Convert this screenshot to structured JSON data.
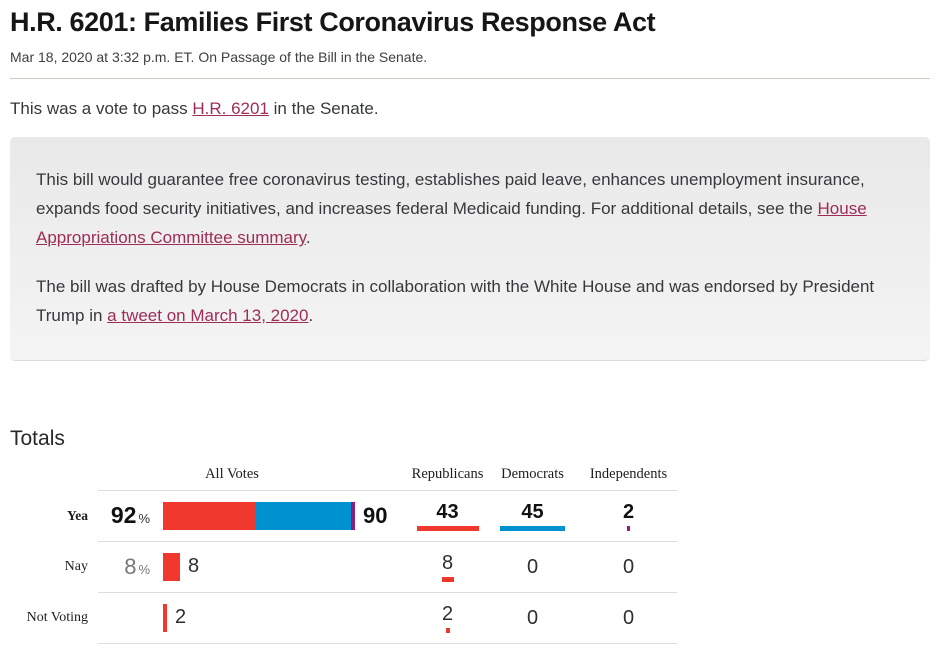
{
  "page": {
    "title": "H.R. 6201: Families First Coronavirus Response Act",
    "subtitle": "Mar 18, 2020 at 3:32 p.m. ET. On Passage of the Bill in the Senate.",
    "intro": {
      "pre": "This was a vote to pass ",
      "link": "H.R. 6201",
      "post": " in the Senate."
    }
  },
  "summary_box": {
    "p1": {
      "pre": "This bill would guarantee free coronavirus testing, establishes paid leave, enhances unemployment insurance, expands food security initiatives, and increases federal Medicaid funding. For additional details, see the ",
      "link": "House Appropriations Committee summary",
      "post": "."
    },
    "p2": {
      "pre": "The bill was drafted by House Democrats in collaboration with the White House and was endorsed by President Trump in ",
      "link": "a tweet on March 13, 2020",
      "post": "."
    }
  },
  "totals": {
    "heading": "Totals",
    "columns": [
      "All Votes",
      "Republicans",
      "Democrats",
      "Independents"
    ],
    "rows": [
      {
        "label": "Yea",
        "percent": "92",
        "percent_symbol": "%",
        "count": "90",
        "republicans": "43",
        "democrats": "45",
        "independents": "2",
        "r": 43,
        "d": 45,
        "i": 2
      },
      {
        "label": "Nay",
        "percent": "8",
        "percent_symbol": "%",
        "count": "8",
        "republicans": "8",
        "democrats": "0",
        "independents": "0",
        "r": 8,
        "d": 0,
        "i": 0
      },
      {
        "label": "Not Voting",
        "percent": "",
        "percent_symbol": "",
        "count": "2",
        "republicans": "2",
        "democrats": "0",
        "independents": "0",
        "r": 2,
        "d": 0,
        "i": 0
      }
    ]
  },
  "chart_data": {
    "type": "bar",
    "title": "Senate vote totals on H.R. 6201",
    "categories": [
      "Yea",
      "Nay",
      "Not Voting"
    ],
    "series": [
      {
        "name": "Republicans",
        "values": [
          43,
          8,
          2
        ]
      },
      {
        "name": "Democrats",
        "values": [
          45,
          0,
          0
        ]
      },
      {
        "name": "Independents",
        "values": [
          2,
          0,
          0
        ]
      }
    ],
    "totals": [
      90,
      8,
      2
    ],
    "percents": [
      92,
      8,
      null
    ]
  },
  "colors": {
    "republican_red": "#f0382f",
    "democrat_blue": "#0092d0",
    "independent_purple": "#8c1e80",
    "link_maroon": "#9d2d56",
    "summary_box_bg": "#ebebeb"
  }
}
